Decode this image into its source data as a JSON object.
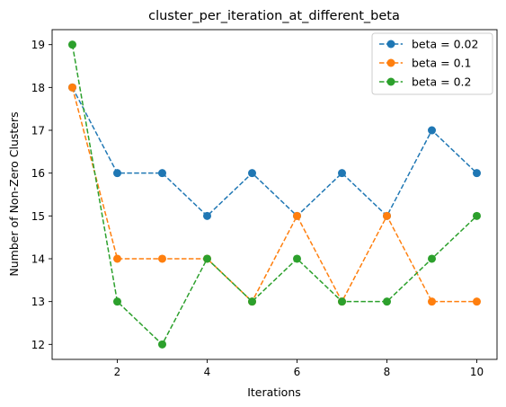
{
  "chart_data": {
    "type": "line",
    "title": "cluster_per_iteration_at_different_beta",
    "xlabel": "Iterations",
    "ylabel": "Number of Non-Zero Clusters",
    "xlim": [
      0.55,
      10.45
    ],
    "ylim": [
      11.65,
      19.35
    ],
    "xticks": [
      2,
      4,
      6,
      8,
      10
    ],
    "yticks": [
      12,
      13,
      14,
      15,
      16,
      17,
      18,
      19
    ],
    "grid": false,
    "legend_position": "top-right",
    "x": [
      1,
      2,
      3,
      4,
      5,
      6,
      7,
      8,
      9,
      10
    ],
    "series": [
      {
        "name": "beta = 0.02",
        "color": "#1f77b4",
        "values": [
          18,
          16,
          16,
          15,
          16,
          15,
          16,
          15,
          17,
          16
        ]
      },
      {
        "name": "beta = 0.1",
        "color": "#ff7f0e",
        "values": [
          18,
          14,
          14,
          14,
          13,
          15,
          13,
          15,
          13,
          13
        ]
      },
      {
        "name": "beta = 0.2",
        "color": "#2ca02c",
        "values": [
          19,
          13,
          12,
          14,
          13,
          14,
          13,
          13,
          14,
          15
        ]
      }
    ],
    "line_style": "dashed",
    "marker": "circle"
  }
}
